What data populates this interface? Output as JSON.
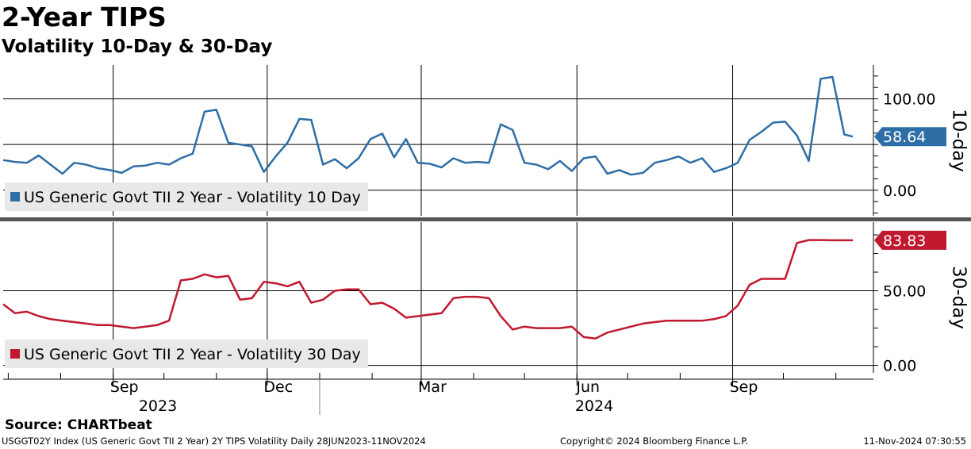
{
  "header": {
    "title": "2-Year TIPS",
    "subtitle": "Volatility 10-Day & 30-Day"
  },
  "colors": {
    "series_10day": "#2e6ea6",
    "series_30day": "#c0182f",
    "grid": "#000000",
    "legend_bg": "#e8e8e8",
    "divider": "#555555"
  },
  "chart_data": [
    {
      "type": "line",
      "panel": "top",
      "side_label": "10-day",
      "y_ticks": [
        0,
        50,
        100
      ],
      "y_tick_labels": [
        "0.00",
        "",
        "100.00"
      ],
      "ylim": [
        -28,
        137
      ],
      "last_value_label": "58.64",
      "series": [
        {
          "name": "US Generic Govt TII 2 Year - Volatility 10 Day",
          "x": [
            "2023-06-28",
            "2023-07-05",
            "2023-07-12",
            "2023-07-19",
            "2023-07-26",
            "2023-08-02",
            "2023-08-09",
            "2023-08-16",
            "2023-08-23",
            "2023-08-30",
            "2023-09-06",
            "2023-09-13",
            "2023-09-20",
            "2023-09-27",
            "2023-10-04",
            "2023-10-11",
            "2023-10-18",
            "2023-10-25",
            "2023-11-01",
            "2023-11-08",
            "2023-11-15",
            "2023-11-22",
            "2023-11-29",
            "2023-12-06",
            "2023-12-13",
            "2023-12-20",
            "2023-12-27",
            "2024-01-03",
            "2024-01-10",
            "2024-01-17",
            "2024-01-24",
            "2024-01-31",
            "2024-02-07",
            "2024-02-14",
            "2024-02-21",
            "2024-02-28",
            "2024-03-06",
            "2024-03-13",
            "2024-03-20",
            "2024-03-27",
            "2024-04-03",
            "2024-04-10",
            "2024-04-17",
            "2024-04-24",
            "2024-05-01",
            "2024-05-08",
            "2024-05-15",
            "2024-05-22",
            "2024-05-29",
            "2024-06-05",
            "2024-06-12",
            "2024-06-19",
            "2024-06-26",
            "2024-07-03",
            "2024-07-10",
            "2024-07-17",
            "2024-07-24",
            "2024-07-31",
            "2024-08-07",
            "2024-08-14",
            "2024-08-21",
            "2024-08-28",
            "2024-09-04",
            "2024-09-11",
            "2024-09-18",
            "2024-09-25",
            "2024-10-02",
            "2024-10-09",
            "2024-10-16",
            "2024-10-23",
            "2024-10-30",
            "2024-11-06",
            "2024-11-11"
          ],
          "values": [
            33,
            31,
            30,
            38,
            28,
            18,
            30,
            28,
            24,
            22,
            19,
            26,
            27,
            30,
            28,
            35,
            40,
            86,
            88,
            52,
            50,
            48,
            20,
            37,
            52,
            78,
            77,
            28,
            34,
            24,
            35,
            56,
            62,
            36,
            56,
            30,
            29,
            25,
            35,
            30,
            31,
            30,
            72,
            66,
            30,
            28,
            23,
            32,
            21,
            35,
            37,
            18,
            22,
            17,
            19,
            30,
            33,
            37,
            30,
            35,
            20,
            24,
            30,
            55,
            64,
            74,
            75,
            60,
            32,
            122,
            124,
            61,
            58.64
          ]
        }
      ]
    },
    {
      "type": "line",
      "panel": "bottom",
      "side_label": "30-day",
      "y_ticks": [
        0,
        50
      ],
      "y_tick_labels": [
        "0.00",
        "50.00"
      ],
      "ylim": [
        -5,
        96
      ],
      "last_value_label": "83.83",
      "series": [
        {
          "name": "US Generic Govt TII 2 Year - Volatility 30 Day",
          "x": [
            "2023-06-28",
            "2023-07-05",
            "2023-07-12",
            "2023-07-19",
            "2023-07-26",
            "2023-08-02",
            "2023-08-09",
            "2023-08-16",
            "2023-08-23",
            "2023-08-30",
            "2023-09-06",
            "2023-09-13",
            "2023-09-20",
            "2023-09-27",
            "2023-10-04",
            "2023-10-11",
            "2023-10-18",
            "2023-10-25",
            "2023-11-01",
            "2023-11-08",
            "2023-11-15",
            "2023-11-22",
            "2023-11-29",
            "2023-12-06",
            "2023-12-13",
            "2023-12-20",
            "2023-12-27",
            "2024-01-03",
            "2024-01-10",
            "2024-01-17",
            "2024-01-24",
            "2024-01-31",
            "2024-02-07",
            "2024-02-14",
            "2024-02-21",
            "2024-02-28",
            "2024-03-06",
            "2024-03-13",
            "2024-03-20",
            "2024-03-27",
            "2024-04-03",
            "2024-04-10",
            "2024-04-17",
            "2024-04-24",
            "2024-05-01",
            "2024-05-08",
            "2024-05-15",
            "2024-05-22",
            "2024-05-29",
            "2024-06-05",
            "2024-06-12",
            "2024-06-19",
            "2024-06-26",
            "2024-07-03",
            "2024-07-10",
            "2024-07-17",
            "2024-07-24",
            "2024-07-31",
            "2024-08-07",
            "2024-08-14",
            "2024-08-21",
            "2024-08-28",
            "2024-09-04",
            "2024-09-11",
            "2024-09-18",
            "2024-09-25",
            "2024-10-02",
            "2024-10-09",
            "2024-10-16",
            "2024-10-23",
            "2024-10-30",
            "2024-11-06",
            "2024-11-11"
          ],
          "values": [
            41,
            35,
            36,
            33,
            31,
            30,
            29,
            28,
            27,
            27,
            26,
            25,
            26,
            27,
            30,
            57,
            58,
            61,
            59,
            60,
            44,
            45,
            56,
            55,
            53,
            56,
            42,
            44,
            50,
            51,
            51,
            41,
            42,
            38,
            32,
            33,
            34,
            35,
            45,
            46,
            46,
            45,
            33,
            24,
            26,
            25,
            25,
            25,
            26,
            19,
            18,
            22,
            24,
            26,
            28,
            29,
            30,
            30,
            30,
            30,
            31,
            33,
            40,
            54,
            58,
            58,
            58,
            82,
            84,
            84,
            83.83,
            83.83,
            83.83
          ]
        }
      ]
    }
  ],
  "x_axis": {
    "tick_labels": [
      "Sep",
      "Dec",
      "Mar",
      "Jun",
      "Sep"
    ],
    "tick_dates": [
      "2023-09-01",
      "2023-12-01",
      "2024-03-01",
      "2024-06-01",
      "2024-09-01"
    ],
    "year_labels": [
      "2023",
      "2024"
    ],
    "range": [
      "2023-06-28",
      "2024-11-11"
    ]
  },
  "footer": {
    "source": "Source: CHARTbeat",
    "left": "USGGT02Y Index (US Generic Govt TII 2 Year) 2Y TIPS Volatility  Daily 28JUN2023-11NOV2024",
    "middle": "Copyright© 2024 Bloomberg Finance L.P.",
    "right": "11-Nov-2024 07:30:55"
  }
}
